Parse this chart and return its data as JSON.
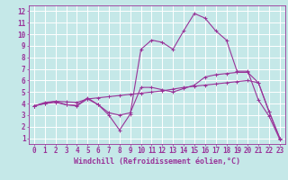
{
  "xlabel": "Windchill (Refroidissement éolien,°C)",
  "xlim": [
    -0.5,
    23.5
  ],
  "ylim": [
    0.5,
    12.5
  ],
  "xticks": [
    0,
    1,
    2,
    3,
    4,
    5,
    6,
    7,
    8,
    9,
    10,
    11,
    12,
    13,
    14,
    15,
    16,
    17,
    18,
    19,
    20,
    21,
    22,
    23
  ],
  "yticks": [
    1,
    2,
    3,
    4,
    5,
    6,
    7,
    8,
    9,
    10,
    11,
    12
  ],
  "bg_color": "#c5e8e8",
  "line_color": "#993399",
  "grid_color": "#ffffff",
  "series1_x": [
    0,
    1,
    2,
    3,
    4,
    5,
    6,
    7,
    8,
    9,
    10,
    11,
    12,
    13,
    14,
    15,
    16,
    17,
    18,
    19,
    20,
    21,
    22,
    23
  ],
  "series1_y": [
    3.8,
    4.1,
    4.2,
    3.9,
    3.85,
    4.5,
    3.9,
    3.0,
    1.7,
    3.1,
    8.7,
    9.5,
    9.3,
    8.7,
    10.3,
    11.8,
    11.4,
    10.3,
    9.5,
    6.8,
    6.8,
    4.3,
    2.9,
    0.9
  ],
  "series2_x": [
    0,
    1,
    2,
    3,
    4,
    5,
    6,
    7,
    8,
    9,
    10,
    11,
    12,
    13,
    14,
    15,
    16,
    17,
    18,
    19,
    20,
    21,
    22,
    23
  ],
  "series2_y": [
    3.8,
    4.0,
    4.1,
    3.9,
    3.8,
    4.4,
    3.9,
    3.2,
    3.0,
    3.2,
    5.4,
    5.4,
    5.2,
    5.0,
    5.3,
    5.6,
    6.3,
    6.5,
    6.6,
    6.7,
    6.7,
    5.8,
    3.3,
    1.0
  ],
  "series3_x": [
    0,
    1,
    2,
    3,
    4,
    5,
    6,
    7,
    8,
    9,
    10,
    11,
    12,
    13,
    14,
    15,
    16,
    17,
    18,
    19,
    20,
    21,
    22,
    23
  ],
  "series3_y": [
    3.8,
    4.0,
    4.2,
    4.15,
    4.1,
    4.4,
    4.5,
    4.6,
    4.7,
    4.8,
    4.9,
    5.0,
    5.1,
    5.25,
    5.4,
    5.5,
    5.6,
    5.7,
    5.8,
    5.9,
    6.0,
    5.8,
    3.3,
    1.0
  ],
  "tick_fontsize": 5.5,
  "xlabel_fontsize": 6.0
}
